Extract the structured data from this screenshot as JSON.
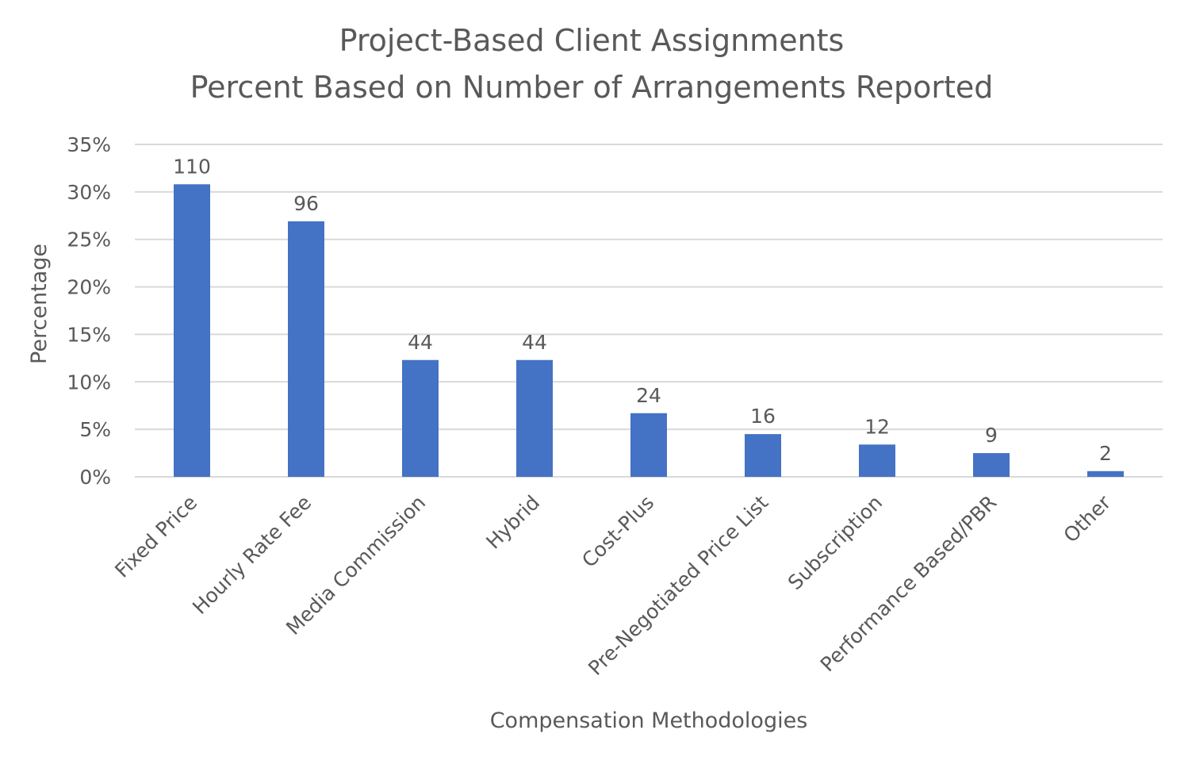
{
  "chart_data": {
    "type": "bar",
    "title": "Project-Based Client Assignments",
    "subtitle": "Percent Based on Number of Arrangements Reported",
    "xlabel": "Compensation Methodologies",
    "ylabel": "Percentage",
    "ylim": [
      0,
      35
    ],
    "yticks": [
      "0%",
      "5%",
      "10%",
      "15%",
      "20%",
      "25%",
      "30%",
      "35%"
    ],
    "grid": true,
    "bar_color": "#4472C4",
    "categories": [
      "Fixed Price",
      "Hourly Rate Fee",
      "Media Commission",
      "Hybrid",
      "Cost-Plus",
      "Pre-Negotiated Price List",
      "Subscription",
      "Performance Based/PBR",
      "Other"
    ],
    "values": [
      30.8,
      26.9,
      12.3,
      12.3,
      6.7,
      4.5,
      3.4,
      2.5,
      0.6
    ],
    "data_labels": [
      "110",
      "96",
      "44",
      "44",
      "24",
      "16",
      "12",
      "9",
      "2"
    ]
  }
}
